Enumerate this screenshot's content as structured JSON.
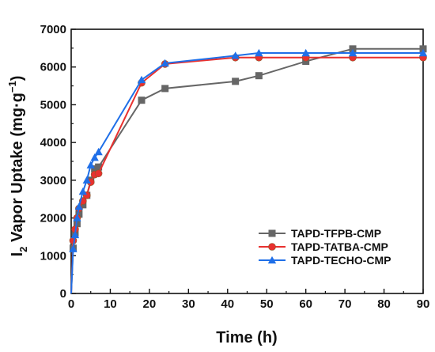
{
  "chart_data": {
    "type": "line",
    "xlabel": "Time (h)",
    "ylabel_main": "I",
    "ylabel_sub": "2",
    "ylabel_rest": " Vapor Uptake (mg·g",
    "ylabel_sup": "−1",
    "ylabel_close": ")",
    "xlim": [
      0,
      90
    ],
    "ylim": [
      0,
      7000
    ],
    "xticks": [
      0,
      10,
      20,
      30,
      40,
      50,
      60,
      70,
      80,
      90
    ],
    "yticks": [
      0,
      1000,
      2000,
      3000,
      4000,
      5000,
      6000,
      7000
    ],
    "xtick_labels": [
      "0",
      "10",
      "20",
      "30",
      "40",
      "50",
      "60",
      "70",
      "80",
      "90"
    ],
    "ytick_labels": [
      "0",
      "1000",
      "2000",
      "3000",
      "4000",
      "5000",
      "6000",
      "7000"
    ],
    "legend_position": "bottom-right",
    "grid": false,
    "series": [
      {
        "name": "TAPD-TFPB-CMP",
        "color": "#666666",
        "marker": "square",
        "points": [
          [
            0,
            0
          ],
          [
            0.5,
            1200
          ],
          [
            1,
            1600
          ],
          [
            1.5,
            1850
          ],
          [
            2,
            2100
          ],
          [
            3,
            2350
          ],
          [
            4,
            2600
          ],
          [
            5,
            3000
          ],
          [
            6,
            3300
          ],
          [
            7,
            3350
          ],
          [
            18,
            5120
          ],
          [
            24,
            5430
          ],
          [
            42,
            5620
          ],
          [
            48,
            5770
          ],
          [
            60,
            6150
          ],
          [
            72,
            6480
          ],
          [
            90,
            6480
          ]
        ]
      },
      {
        "name": "TAPD-TATBA-CMP",
        "color": "#e8312f",
        "marker": "circle",
        "points": [
          [
            0,
            0
          ],
          [
            0.5,
            1400
          ],
          [
            1,
            1700
          ],
          [
            1.5,
            2000
          ],
          [
            2,
            2250
          ],
          [
            3,
            2450
          ],
          [
            4,
            2600
          ],
          [
            5,
            2950
          ],
          [
            6,
            3150
          ],
          [
            7,
            3180
          ],
          [
            18,
            5580
          ],
          [
            24,
            6080
          ],
          [
            42,
            6250
          ],
          [
            48,
            6250
          ],
          [
            60,
            6250
          ],
          [
            72,
            6250
          ],
          [
            90,
            6250
          ]
        ]
      },
      {
        "name": "TAPD-TECHO-CMP",
        "color": "#1f6fe8",
        "marker": "triangle",
        "points": [
          [
            0,
            0
          ],
          [
            0.5,
            1180
          ],
          [
            1,
            1550
          ],
          [
            1.5,
            2000
          ],
          [
            2,
            2300
          ],
          [
            3,
            2700
          ],
          [
            4,
            3000
          ],
          [
            5,
            3400
          ],
          [
            6,
            3600
          ],
          [
            7,
            3750
          ],
          [
            18,
            5660
          ],
          [
            24,
            6100
          ],
          [
            42,
            6300
          ],
          [
            48,
            6370
          ],
          [
            60,
            6370
          ],
          [
            72,
            6370
          ],
          [
            90,
            6370
          ]
        ]
      }
    ]
  }
}
